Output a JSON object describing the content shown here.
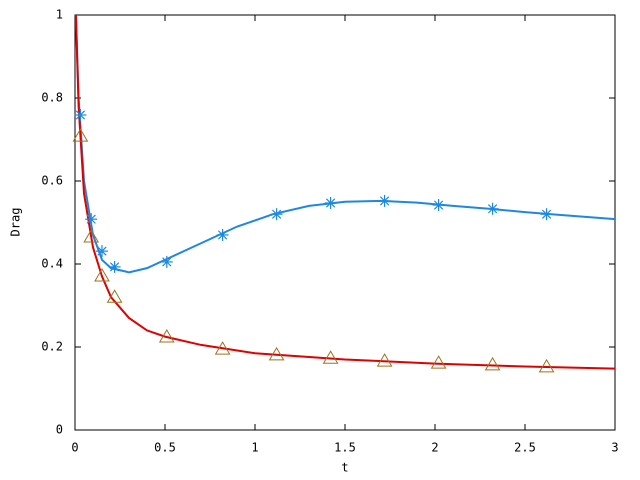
{
  "chart_data": {
    "type": "line",
    "xlabel": "t",
    "ylabel": "Drag",
    "xlim": [
      0,
      3
    ],
    "ylim": [
      0,
      1
    ],
    "xticks": [
      0,
      0.5,
      1,
      1.5,
      2,
      2.5,
      3
    ],
    "yticks": [
      0,
      0.2,
      0.4,
      0.6,
      0.8,
      1
    ],
    "grid": false,
    "series": [
      {
        "style": "line",
        "color": "#1e88e0",
        "x": [
          0.005,
          0.02,
          0.05,
          0.1,
          0.15,
          0.2,
          0.3,
          0.4,
          0.5,
          0.7,
          0.9,
          1.1,
          1.3,
          1.5,
          1.7,
          1.9,
          2.1,
          2.3,
          2.5,
          2.7,
          3.0
        ],
        "values": [
          1.0,
          0.8,
          0.6,
          0.47,
          0.41,
          0.39,
          0.38,
          0.39,
          0.41,
          0.45,
          0.49,
          0.52,
          0.54,
          0.55,
          0.552,
          0.548,
          0.54,
          0.533,
          0.525,
          0.518,
          0.508
        ]
      },
      {
        "style": "line",
        "color": "#e00000",
        "x": [
          0.005,
          0.02,
          0.05,
          0.1,
          0.15,
          0.2,
          0.3,
          0.4,
          0.5,
          0.7,
          1.0,
          1.5,
          2.0,
          2.5,
          3.0
        ],
        "values": [
          1.0,
          0.78,
          0.57,
          0.44,
          0.37,
          0.32,
          0.27,
          0.24,
          0.225,
          0.205,
          0.185,
          0.17,
          0.16,
          0.153,
          0.148
        ]
      },
      {
        "style": "points",
        "marker": "star",
        "color": "#1e88e0",
        "x": [
          0.03,
          0.09,
          0.15,
          0.22,
          0.51,
          0.82,
          1.12,
          1.42,
          1.72,
          2.02,
          2.32,
          2.62
        ],
        "values": [
          0.759,
          0.508,
          0.431,
          0.393,
          0.405,
          0.47,
          0.52,
          0.547,
          0.552,
          0.542,
          0.533,
          0.52
        ]
      },
      {
        "style": "points",
        "marker": "triangle",
        "color": "#a0701e",
        "x": [
          0.03,
          0.09,
          0.15,
          0.22,
          0.51,
          0.82,
          1.12,
          1.42,
          1.72,
          2.02,
          2.32,
          2.62
        ],
        "values": [
          0.708,
          0.465,
          0.371,
          0.32,
          0.224,
          0.195,
          0.181,
          0.173,
          0.166,
          0.161,
          0.157,
          0.152
        ]
      }
    ]
  }
}
